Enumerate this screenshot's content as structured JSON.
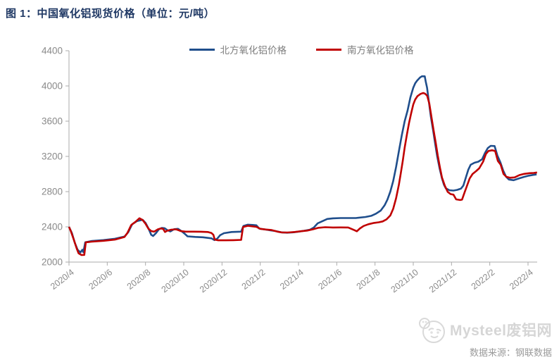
{
  "title": "图 1：中国氧化铝现货价格（单位：元/吨）",
  "watermark": {
    "brand": "Mysteel废铝网",
    "source": "数据来源：钢联数据"
  },
  "colors": {
    "title_navy": "#1F3864",
    "north_blue": "#1F4E8C",
    "south_red": "#C00000",
    "axis_gray": "#ABABAB",
    "tick_label_gray": "#8A8A8A",
    "watermark_gray": "#D6D6D6"
  },
  "chart_data": {
    "type": "line",
    "title": "中国氧化铝现货价格",
    "unit": "元/吨",
    "xlabel": "",
    "ylabel": "",
    "ylim": [
      2000,
      4400
    ],
    "yticks": [
      2000,
      2400,
      2800,
      3200,
      3600,
      4000,
      4400
    ],
    "xticks": [
      "2020/4",
      "2020/6",
      "2020/8",
      "2020/10",
      "2020/12",
      "2021/2",
      "2021/4",
      "2021/6",
      "2021/8",
      "2021/10",
      "2021/12",
      "2022/2",
      "2022/4"
    ],
    "months_per_xtick": 2,
    "grid": false,
    "legend_position": "top-center",
    "x_unit": "months since 2020/4 (fractional)",
    "series": [
      {
        "name": "北方氧化铝价格",
        "color": "#1F4E8C",
        "points": [
          [
            0,
            2400
          ],
          [
            0.15,
            2330
          ],
          [
            0.3,
            2220
          ],
          [
            0.45,
            2140
          ],
          [
            0.6,
            2110
          ],
          [
            0.7,
            2140
          ],
          [
            0.75,
            2112
          ],
          [
            0.85,
            2225
          ],
          [
            1.2,
            2240
          ],
          [
            1.8,
            2250
          ],
          [
            2.4,
            2265
          ],
          [
            2.9,
            2290
          ],
          [
            3.1,
            2340
          ],
          [
            3.3,
            2430
          ],
          [
            3.55,
            2465
          ],
          [
            3.85,
            2480
          ],
          [
            4.0,
            2445
          ],
          [
            4.15,
            2385
          ],
          [
            4.3,
            2310
          ],
          [
            4.4,
            2296
          ],
          [
            4.55,
            2330
          ],
          [
            4.7,
            2372
          ],
          [
            4.85,
            2388
          ],
          [
            5.0,
            2385
          ],
          [
            5.15,
            2362
          ],
          [
            5.3,
            2348
          ],
          [
            5.5,
            2374
          ],
          [
            5.7,
            2378
          ],
          [
            5.9,
            2348
          ],
          [
            6.05,
            2322
          ],
          [
            6.2,
            2292
          ],
          [
            6.6,
            2286
          ],
          [
            7.0,
            2282
          ],
          [
            7.45,
            2270
          ],
          [
            7.6,
            2250
          ],
          [
            7.75,
            2266
          ],
          [
            7.9,
            2305
          ],
          [
            8.1,
            2328
          ],
          [
            8.5,
            2342
          ],
          [
            9.0,
            2346
          ],
          [
            9.12,
            2410
          ],
          [
            9.35,
            2425
          ],
          [
            9.6,
            2422
          ],
          [
            9.8,
            2418
          ],
          [
            9.95,
            2380
          ],
          [
            10.2,
            2372
          ],
          [
            10.5,
            2362
          ],
          [
            10.8,
            2352
          ],
          [
            11.1,
            2338
          ],
          [
            11.4,
            2334
          ],
          [
            11.7,
            2338
          ],
          [
            12.0,
            2346
          ],
          [
            12.3,
            2356
          ],
          [
            12.6,
            2368
          ],
          [
            12.8,
            2392
          ],
          [
            13.0,
            2440
          ],
          [
            13.25,
            2465
          ],
          [
            13.5,
            2490
          ],
          [
            13.8,
            2497
          ],
          [
            14.2,
            2500
          ],
          [
            15.0,
            2500
          ],
          [
            15.5,
            2512
          ],
          [
            15.8,
            2525
          ],
          [
            16.05,
            2550
          ],
          [
            16.3,
            2585
          ],
          [
            16.5,
            2645
          ],
          [
            16.65,
            2710
          ],
          [
            16.8,
            2800
          ],
          [
            16.95,
            2920
          ],
          [
            17.1,
            3080
          ],
          [
            17.25,
            3260
          ],
          [
            17.4,
            3440
          ],
          [
            17.55,
            3600
          ],
          [
            17.7,
            3720
          ],
          [
            17.85,
            3870
          ],
          [
            18.0,
            3980
          ],
          [
            18.1,
            4030
          ],
          [
            18.2,
            4060
          ],
          [
            18.35,
            4095
          ],
          [
            18.45,
            4110
          ],
          [
            18.6,
            4110
          ],
          [
            18.65,
            4050
          ],
          [
            18.72,
            3980
          ],
          [
            18.8,
            3850
          ],
          [
            18.92,
            3650
          ],
          [
            19.05,
            3480
          ],
          [
            19.15,
            3340
          ],
          [
            19.25,
            3200
          ],
          [
            19.38,
            3060
          ],
          [
            19.5,
            2950
          ],
          [
            19.6,
            2880
          ],
          [
            19.7,
            2838
          ],
          [
            19.9,
            2815
          ],
          [
            20.1,
            2812
          ],
          [
            20.3,
            2820
          ],
          [
            20.5,
            2835
          ],
          [
            20.62,
            2870
          ],
          [
            20.75,
            2960
          ],
          [
            20.88,
            3050
          ],
          [
            21.0,
            3105
          ],
          [
            21.2,
            3128
          ],
          [
            21.4,
            3140
          ],
          [
            21.6,
            3168
          ],
          [
            21.75,
            3240
          ],
          [
            21.9,
            3295
          ],
          [
            22.05,
            3320
          ],
          [
            22.25,
            3318
          ],
          [
            22.4,
            3210
          ],
          [
            22.55,
            3135
          ],
          [
            22.7,
            3040
          ],
          [
            22.85,
            2970
          ],
          [
            23.0,
            2938
          ],
          [
            23.25,
            2930
          ],
          [
            23.5,
            2948
          ],
          [
            23.8,
            2968
          ],
          [
            24.05,
            2982
          ],
          [
            24.25,
            2990
          ],
          [
            24.45,
            2995
          ]
        ]
      },
      {
        "name": "南方氧化铝价格",
        "color": "#C00000",
        "points": [
          [
            0,
            2400
          ],
          [
            0.1,
            2350
          ],
          [
            0.25,
            2255
          ],
          [
            0.4,
            2155
          ],
          [
            0.5,
            2100
          ],
          [
            0.65,
            2080
          ],
          [
            0.8,
            2082
          ],
          [
            0.88,
            2225
          ],
          [
            1.2,
            2232
          ],
          [
            1.8,
            2242
          ],
          [
            2.4,
            2255
          ],
          [
            2.9,
            2285
          ],
          [
            3.05,
            2330
          ],
          [
            3.25,
            2420
          ],
          [
            3.5,
            2462
          ],
          [
            3.68,
            2498
          ],
          [
            3.85,
            2478
          ],
          [
            4.0,
            2435
          ],
          [
            4.15,
            2380
          ],
          [
            4.3,
            2352
          ],
          [
            4.45,
            2346
          ],
          [
            4.65,
            2372
          ],
          [
            4.8,
            2382
          ],
          [
            4.92,
            2378
          ],
          [
            5.02,
            2342
          ],
          [
            5.12,
            2355
          ],
          [
            5.35,
            2368
          ],
          [
            5.6,
            2372
          ],
          [
            5.85,
            2352
          ],
          [
            6.1,
            2346
          ],
          [
            6.5,
            2346
          ],
          [
            6.9,
            2345
          ],
          [
            7.25,
            2342
          ],
          [
            7.45,
            2330
          ],
          [
            7.55,
            2310
          ],
          [
            7.62,
            2255
          ],
          [
            7.8,
            2247
          ],
          [
            8.2,
            2247
          ],
          [
            8.6,
            2249
          ],
          [
            9.0,
            2252
          ],
          [
            9.1,
            2398
          ],
          [
            9.35,
            2412
          ],
          [
            9.6,
            2406
          ],
          [
            9.8,
            2400
          ],
          [
            10.0,
            2378
          ],
          [
            10.3,
            2370
          ],
          [
            10.6,
            2363
          ],
          [
            10.9,
            2346
          ],
          [
            11.15,
            2336
          ],
          [
            11.45,
            2336
          ],
          [
            11.8,
            2342
          ],
          [
            12.1,
            2350
          ],
          [
            12.45,
            2358
          ],
          [
            12.75,
            2372
          ],
          [
            13.05,
            2390
          ],
          [
            13.4,
            2396
          ],
          [
            13.8,
            2393
          ],
          [
            14.2,
            2394
          ],
          [
            14.6,
            2393
          ],
          [
            14.9,
            2365
          ],
          [
            15.05,
            2350
          ],
          [
            15.2,
            2380
          ],
          [
            15.4,
            2410
          ],
          [
            15.65,
            2430
          ],
          [
            15.95,
            2445
          ],
          [
            16.2,
            2452
          ],
          [
            16.4,
            2462
          ],
          [
            16.6,
            2485
          ],
          [
            16.8,
            2530
          ],
          [
            16.95,
            2605
          ],
          [
            17.1,
            2725
          ],
          [
            17.25,
            2880
          ],
          [
            17.35,
            3010
          ],
          [
            17.45,
            3150
          ],
          [
            17.55,
            3300
          ],
          [
            17.67,
            3450
          ],
          [
            17.78,
            3580
          ],
          [
            17.89,
            3690
          ],
          [
            18.0,
            3790
          ],
          [
            18.1,
            3845
          ],
          [
            18.22,
            3885
          ],
          [
            18.38,
            3910
          ],
          [
            18.52,
            3920
          ],
          [
            18.62,
            3912
          ],
          [
            18.73,
            3888
          ],
          [
            18.84,
            3800
          ],
          [
            18.95,
            3650
          ],
          [
            19.06,
            3500
          ],
          [
            19.17,
            3360
          ],
          [
            19.28,
            3210
          ],
          [
            19.4,
            3070
          ],
          [
            19.5,
            2960
          ],
          [
            19.65,
            2868
          ],
          [
            19.8,
            2798
          ],
          [
            19.95,
            2772
          ],
          [
            20.1,
            2766
          ],
          [
            20.24,
            2712
          ],
          [
            20.45,
            2705
          ],
          [
            20.55,
            2710
          ],
          [
            20.68,
            2790
          ],
          [
            20.8,
            2862
          ],
          [
            20.95,
            2950
          ],
          [
            21.1,
            3000
          ],
          [
            21.28,
            3032
          ],
          [
            21.45,
            3065
          ],
          [
            21.65,
            3140
          ],
          [
            21.8,
            3228
          ],
          [
            21.93,
            3262
          ],
          [
            22.12,
            3270
          ],
          [
            22.28,
            3262
          ],
          [
            22.42,
            3150
          ],
          [
            22.57,
            3105
          ],
          [
            22.72,
            3000
          ],
          [
            22.87,
            2968
          ],
          [
            23.05,
            2958
          ],
          [
            23.3,
            2962
          ],
          [
            23.55,
            2988
          ],
          [
            23.8,
            3002
          ],
          [
            24.08,
            3010
          ],
          [
            24.3,
            3012
          ],
          [
            24.47,
            3018
          ]
        ]
      }
    ]
  }
}
